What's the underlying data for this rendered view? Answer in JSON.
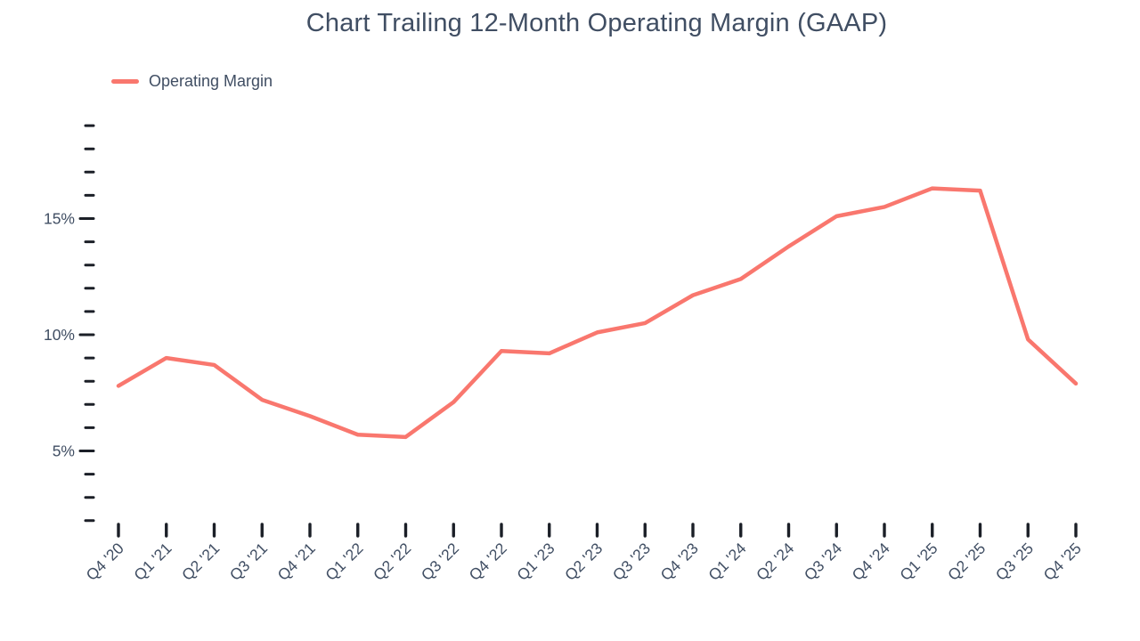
{
  "title": "Chart Trailing 12-Month Operating Margin (GAAP)",
  "legend": {
    "label": "Operating Margin"
  },
  "colors": {
    "line": "#F9776E",
    "text": "#404E63",
    "tick": "#1B1F27"
  },
  "chart_data": {
    "type": "line",
    "title": "Chart Trailing 12-Month Operating Margin (GAAP)",
    "xlabel": "",
    "ylabel": "",
    "grid": false,
    "legend_position": "top-left",
    "categories": [
      "Q4 '20",
      "Q1 '21",
      "Q2 '21",
      "Q3 '21",
      "Q4 '21",
      "Q1 '22",
      "Q2 '22",
      "Q3 '22",
      "Q4 '22",
      "Q1 '23",
      "Q2 '23",
      "Q3 '23",
      "Q4 '23",
      "Q1 '24",
      "Q2 '24",
      "Q3 '24",
      "Q4 '24",
      "Q1 '25",
      "Q2 '25",
      "Q3 '25",
      "Q4 '25"
    ],
    "series": [
      {
        "name": "Operating Margin",
        "values": [
          7.8,
          9.0,
          8.7,
          7.2,
          6.5,
          5.7,
          5.6,
          7.1,
          9.3,
          9.2,
          10.1,
          10.5,
          11.7,
          12.4,
          13.8,
          15.1,
          15.5,
          16.3,
          16.2,
          9.8,
          7.9
        ]
      }
    ],
    "unit": "%",
    "ylim": [
      2,
      19
    ],
    "y_minor_tick_step": 1,
    "y_major_ticks": [
      5,
      10,
      15
    ],
    "y_tick_labels": [
      "5%",
      "10%",
      "15%"
    ]
  }
}
